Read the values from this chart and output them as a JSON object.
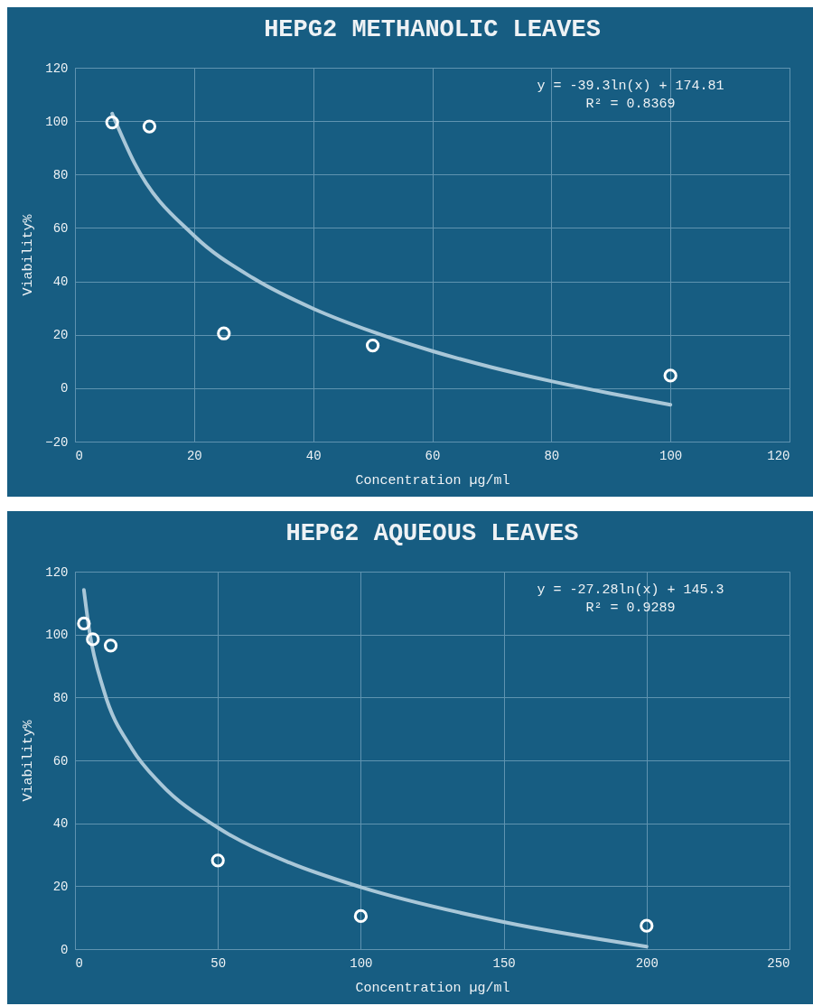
{
  "chart_data": [
    {
      "type": "scatter",
      "title": "HEPG2 METHANOLIC LEAVES",
      "xlabel": "Concentration µg/ml",
      "ylabel": "Viability%",
      "annotations": [
        "y = -39.3ln(x) + 174.81",
        "R² = 0.8369"
      ],
      "xlim": [
        0,
        120
      ],
      "xticks": [
        0,
        20,
        40,
        60,
        80,
        100,
        120
      ],
      "ylim": [
        -20,
        120
      ],
      "yticks": [
        -20,
        0,
        20,
        40,
        60,
        80,
        100,
        120
      ],
      "grid": true,
      "series": [
        {
          "marker": "circle",
          "color": "#ffffff",
          "x": [
            6.25,
            12.5,
            25,
            50,
            100
          ],
          "values": [
            99.5,
            98,
            20.5,
            16,
            4.7
          ]
        },
        {
          "type": "line",
          "marker": "none",
          "color": "#a9c7d8",
          "x": [
            6.25,
            10,
            20,
            30,
            40,
            50,
            60,
            70,
            80,
            90,
            100
          ],
          "values": [
            102.8,
            84.3,
            57.1,
            41.1,
            29.8,
            21.1,
            13.9,
            7.8,
            2.6,
            -2.0,
            -6.2
          ]
        }
      ]
    },
    {
      "type": "scatter",
      "title": "HEPG2 AQUEOUS LEAVES",
      "xlabel": "Concentration µg/ml",
      "ylabel": "Viability%",
      "annotations": [
        "y = -27.28ln(x) + 145.3",
        "R² = 0.9289"
      ],
      "xlim": [
        0,
        250
      ],
      "xticks": [
        0,
        50,
        100,
        150,
        200,
        250
      ],
      "ylim": [
        0,
        120
      ],
      "yticks": [
        0,
        20,
        40,
        60,
        80,
        100,
        120
      ],
      "grid": true,
      "series": [
        {
          "marker": "circle",
          "color": "#ffffff",
          "x": [
            3.125,
            6.25,
            12.5,
            50,
            100,
            200
          ],
          "values": [
            103.5,
            98.5,
            96.5,
            28.2,
            10.5,
            7.4
          ]
        },
        {
          "type": "line",
          "marker": "none",
          "color": "#a9c7d8",
          "x": [
            3.125,
            5,
            10,
            20,
            30,
            50,
            75,
            100,
            150,
            200
          ],
          "values": [
            114.2,
            101.4,
            82.5,
            63.6,
            52.5,
            38.6,
            27.5,
            19.7,
            8.6,
            0.8
          ]
        }
      ]
    }
  ]
}
